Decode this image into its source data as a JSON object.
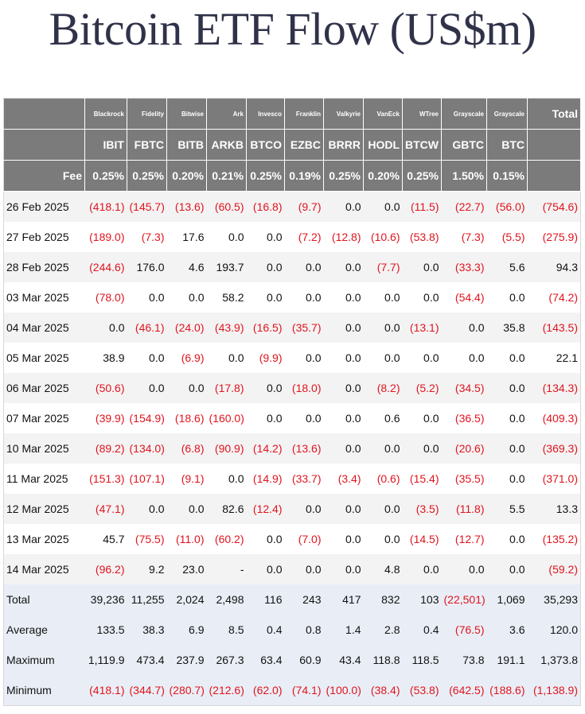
{
  "title": "Bitcoin ETF Flow (US$m)",
  "issuers": [
    "Blackrock",
    "Fidelity",
    "Bitwise",
    "Ark",
    "Invesco",
    "Franklin",
    "Valkyrie",
    "VanEck",
    "WTree",
    "Grayscale",
    "Grayscale"
  ],
  "total_header": "Total",
  "tickers": [
    "IBIT",
    "FBTC",
    "BITB",
    "ARKB",
    "BTCO",
    "EZBC",
    "BRRR",
    "HODL",
    "BTCW",
    "GBTC",
    "BTC"
  ],
  "fee_label": "Fee",
  "fees": [
    "0.25%",
    "0.25%",
    "0.20%",
    "0.21%",
    "0.25%",
    "0.19%",
    "0.25%",
    "0.20%",
    "0.25%",
    "1.50%",
    "0.15%"
  ],
  "rows": [
    {
      "date": "26 Feb 2025",
      "values": [
        "(418.1)",
        "(145.7)",
        "(13.6)",
        "(60.5)",
        "(16.8)",
        "(9.7)",
        "0.0",
        "0.0",
        "(11.5)",
        "(22.7)",
        "(56.0)"
      ],
      "total": "(754.6)"
    },
    {
      "date": "27 Feb 2025",
      "values": [
        "(189.0)",
        "(7.3)",
        "17.6",
        "0.0",
        "0.0",
        "(7.2)",
        "(12.8)",
        "(10.6)",
        "(53.8)",
        "(7.3)",
        "(5.5)"
      ],
      "total": "(275.9)"
    },
    {
      "date": "28 Feb 2025",
      "values": [
        "(244.6)",
        "176.0",
        "4.6",
        "193.7",
        "0.0",
        "0.0",
        "0.0",
        "(7.7)",
        "0.0",
        "(33.3)",
        "5.6"
      ],
      "total": "94.3"
    },
    {
      "date": "03 Mar 2025",
      "values": [
        "(78.0)",
        "0.0",
        "0.0",
        "58.2",
        "0.0",
        "0.0",
        "0.0",
        "0.0",
        "0.0",
        "(54.4)",
        "0.0"
      ],
      "total": "(74.2)"
    },
    {
      "date": "04 Mar 2025",
      "values": [
        "0.0",
        "(46.1)",
        "(24.0)",
        "(43.9)",
        "(16.5)",
        "(35.7)",
        "0.0",
        "0.0",
        "(13.1)",
        "0.0",
        "35.8"
      ],
      "total": "(143.5)"
    },
    {
      "date": "05 Mar 2025",
      "values": [
        "38.9",
        "0.0",
        "(6.9)",
        "0.0",
        "(9.9)",
        "0.0",
        "0.0",
        "0.0",
        "0.0",
        "0.0",
        "0.0"
      ],
      "total": "22.1"
    },
    {
      "date": "06 Mar 2025",
      "values": [
        "(50.6)",
        "0.0",
        "0.0",
        "(17.8)",
        "0.0",
        "(18.0)",
        "0.0",
        "(8.2)",
        "(5.2)",
        "(34.5)",
        "0.0"
      ],
      "total": "(134.3)"
    },
    {
      "date": "07 Mar 2025",
      "values": [
        "(39.9)",
        "(154.9)",
        "(18.6)",
        "(160.0)",
        "0.0",
        "0.0",
        "0.0",
        "0.6",
        "0.0",
        "(36.5)",
        "0.0"
      ],
      "total": "(409.3)"
    },
    {
      "date": "10 Mar 2025",
      "values": [
        "(89.2)",
        "(134.0)",
        "(6.8)",
        "(90.9)",
        "(14.2)",
        "(13.6)",
        "0.0",
        "0.0",
        "0.0",
        "(20.6)",
        "0.0"
      ],
      "total": "(369.3)"
    },
    {
      "date": "11 Mar 2025",
      "values": [
        "(151.3)",
        "(107.1)",
        "(9.1)",
        "0.0",
        "(14.9)",
        "(33.7)",
        "(3.4)",
        "(0.6)",
        "(15.4)",
        "(35.5)",
        "0.0"
      ],
      "total": "(371.0)"
    },
    {
      "date": "12 Mar 2025",
      "values": [
        "(47.1)",
        "0.0",
        "0.0",
        "82.6",
        "(12.4)",
        "0.0",
        "0.0",
        "0.0",
        "(3.5)",
        "(11.8)",
        "5.5"
      ],
      "total": "13.3"
    },
    {
      "date": "13 Mar 2025",
      "values": [
        "45.7",
        "(75.5)",
        "(11.0)",
        "(60.2)",
        "0.0",
        "(7.0)",
        "0.0",
        "0.0",
        "(14.5)",
        "(12.7)",
        "0.0"
      ],
      "total": "(135.2)"
    },
    {
      "date": "14 Mar 2025",
      "values": [
        "(96.2)",
        "9.2",
        "23.0",
        "-",
        "0.0",
        "0.0",
        "0.0",
        "4.8",
        "0.0",
        "0.0",
        "0.0"
      ],
      "total": "(59.2)"
    }
  ],
  "summary": [
    {
      "label": "Total",
      "values": [
        "39,236",
        "11,255",
        "2,024",
        "2,498",
        "116",
        "243",
        "417",
        "832",
        "103",
        "(22,501)",
        "1,069"
      ],
      "total": "35,293"
    },
    {
      "label": "Average",
      "values": [
        "133.5",
        "38.3",
        "6.9",
        "8.5",
        "0.4",
        "0.8",
        "1.4",
        "2.8",
        "0.4",
        "(76.5)",
        "3.6"
      ],
      "total": "120.0"
    },
    {
      "label": "Maximum",
      "values": [
        "1,119.9",
        "473.4",
        "237.9",
        "267.3",
        "63.4",
        "60.9",
        "43.4",
        "118.8",
        "118.5",
        "73.8",
        "191.1"
      ],
      "total": "1,373.8"
    },
    {
      "label": "Minimum",
      "values": [
        "(418.1)",
        "(344.7)",
        "(280.7)",
        "(212.6)",
        "(62.0)",
        "(74.1)",
        "(100.0)",
        "(38.4)",
        "(53.8)",
        "(642.5)",
        "(188.6)"
      ],
      "total": "(1,138.9)"
    }
  ],
  "colors": {
    "header_bg": "#7b7b7b",
    "negative": "#e0141e",
    "summary_bg": "#e9eef6",
    "title": "#2f3249"
  }
}
